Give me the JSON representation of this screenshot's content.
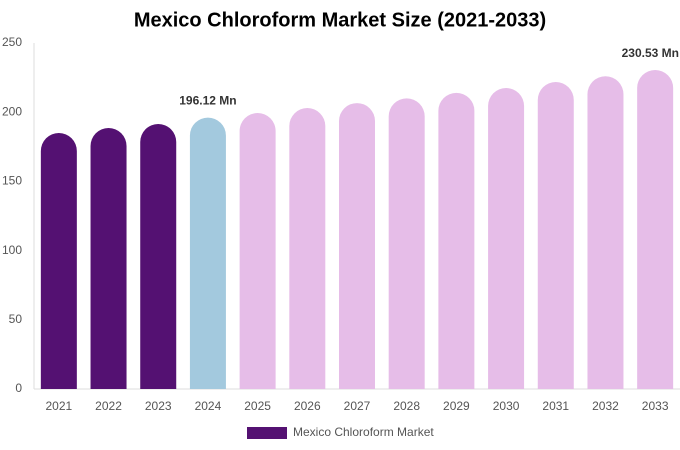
{
  "chart_data": {
    "type": "bar",
    "title": "Mexico Chloroform Market Size (2021-2033)",
    "categories": [
      "2021",
      "2022",
      "2023",
      "2024",
      "2025",
      "2026",
      "2027",
      "2028",
      "2029",
      "2030",
      "2031",
      "2032",
      "2033"
    ],
    "series": [
      {
        "name": "Mexico Chloroform Market",
        "color": "#541172",
        "values": [
          185,
          188.6,
          191.5,
          196.12,
          199.4,
          203,
          206.6,
          210,
          214,
          217.5,
          221.8,
          226,
          230.53
        ],
        "value_labels": [
          null,
          null,
          null,
          "196.12 Mn",
          null,
          null,
          null,
          null,
          null,
          null,
          null,
          null,
          "230.53 Mn"
        ],
        "bar_colors": [
          "#541172",
          "#541172",
          "#541172",
          "#a3c9de",
          "#e6bde8",
          "#e6bde8",
          "#e6bde8",
          "#e6bde8",
          "#e6bde8",
          "#e6bde8",
          "#e6bde8",
          "#e6bde8",
          "#e6bde8"
        ]
      }
    ],
    "ylim": [
      0,
      250
    ],
    "yticks": [
      0,
      50,
      100,
      150,
      200,
      250
    ],
    "grid": false
  }
}
